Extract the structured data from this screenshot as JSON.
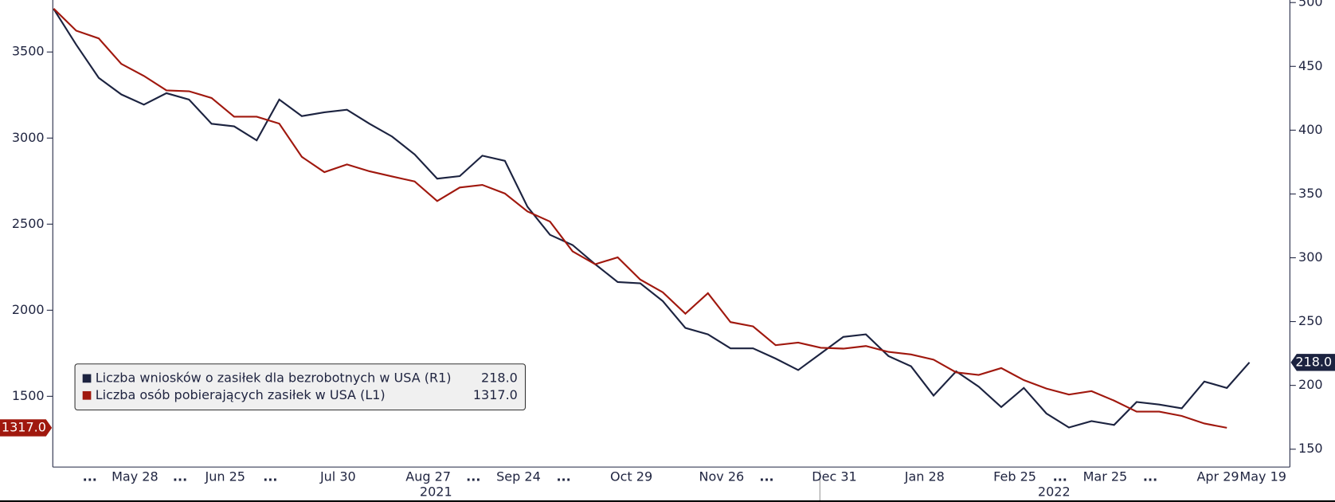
{
  "chart_data": {
    "type": "line",
    "categories": [
      null,
      "...",
      null,
      "May 28",
      null,
      "...",
      null,
      "Jun 25",
      null,
      "...",
      null,
      null,
      "Jul 30",
      null,
      null,
      null,
      "Aug 27",
      null,
      "...",
      null,
      "Sep 24",
      null,
      "...",
      null,
      null,
      "Oct 29",
      null,
      null,
      null,
      "Nov 26",
      null,
      "...",
      null,
      null,
      "Dec 31",
      null,
      null,
      null,
      "Jan 28",
      null,
      null,
      null,
      "Feb 25",
      null,
      "...",
      null,
      "Mar 25",
      null,
      "...",
      null,
      null,
      "Apr 29",
      null,
      "May 19"
    ],
    "series": [
      {
        "name": "Liczba wniosków o zasiłek dla bezrobotnych w USA (R1)",
        "color": "#1c2340",
        "axis": "y2",
        "last_label": "218.0",
        "values": [
          495,
          467,
          441,
          428,
          420,
          429,
          424,
          405,
          403,
          392,
          424,
          411,
          414,
          416,
          405,
          395,
          381,
          362,
          364,
          380,
          376,
          340,
          318,
          310,
          295,
          281,
          280,
          266,
          245,
          240,
          229,
          229,
          221,
          212,
          225,
          238,
          240,
          223,
          215,
          192,
          211,
          199,
          183,
          198,
          178,
          167,
          172,
          169,
          187,
          185,
          182,
          203,
          198,
          218
        ]
      },
      {
        "name": "Liczba osób pobierających zasiłek w USA (L1)",
        "color": "#a0180e",
        "last_label": "1317.0",
        "values": [
          3752,
          3624,
          3579,
          3431,
          3361,
          3277,
          3272,
          3233,
          3124,
          3124,
          3084,
          2891,
          2802,
          2847,
          2807,
          2777,
          2748,
          2634,
          2713,
          2728,
          2678,
          2574,
          2515,
          2342,
          2267,
          2307,
          2178,
          2104,
          1980,
          2099,
          1931,
          1906,
          1797,
          1812,
          1782,
          1777,
          1792,
          1758,
          1743,
          1713,
          1639,
          1624,
          1664,
          1594,
          1545,
          1510,
          1530,
          1475,
          1411,
          1411,
          1386,
          1342,
          1317,
          null
        ]
      }
    ],
    "ylim": [
      1089,
      3802
    ],
    "yticks": [
      1500,
      2000,
      2500,
      3000,
      3500
    ],
    "y2lim": [
      136,
      502
    ],
    "y2ticks": [
      150,
      200,
      250,
      300,
      350,
      400,
      450,
      500
    ],
    "year_labels": [
      "2021",
      "2022"
    ],
    "legend": "lower left"
  }
}
